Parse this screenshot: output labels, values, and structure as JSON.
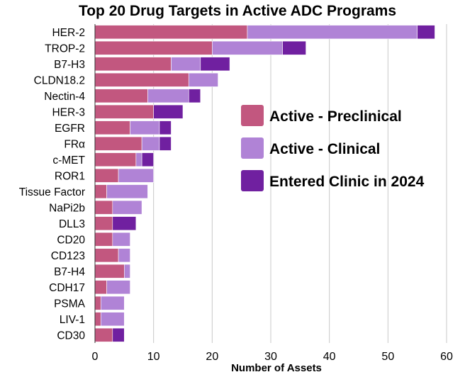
{
  "chart_data": {
    "type": "bar",
    "orientation": "horizontal",
    "stacked": true,
    "title": "Top 20 Drug Targets in Active ADC Programs",
    "xlabel": "Number of Assets",
    "ylabel": "",
    "xlim": [
      0,
      60
    ],
    "xticks": [
      0,
      10,
      20,
      30,
      40,
      50,
      60
    ],
    "grid": "vertical",
    "legend_position": "right",
    "categories": [
      "HER-2",
      "TROP-2",
      "B7-H3",
      "CLDN18.2",
      "Nectin-4",
      "HER-3",
      "EGFR",
      "FRα",
      "c-MET",
      "ROR1",
      "Tissue Factor",
      "NaPi2b",
      "DLL3",
      "CD20",
      "CD123",
      "B7-H4",
      "CDH17",
      "PSMA",
      "LIV-1",
      "CD30"
    ],
    "series": [
      {
        "name": "Active - Preclinical",
        "color": "#c2577f",
        "values": [
          26,
          20,
          13,
          16,
          9,
          10,
          6,
          8,
          7,
          4,
          2,
          3,
          3,
          3,
          4,
          5,
          2,
          1,
          1,
          3
        ]
      },
      {
        "name": "Active - Clinical",
        "color": "#b083d6",
        "values": [
          29,
          12,
          5,
          5,
          7,
          0,
          5,
          3,
          1,
          6,
          7,
          5,
          0,
          3,
          2,
          1,
          4,
          4,
          4,
          0
        ]
      },
      {
        "name": "Entered Clinic in 2024",
        "color": "#7020a0",
        "values": [
          3,
          4,
          5,
          0,
          2,
          5,
          2,
          2,
          2,
          0,
          0,
          0,
          4,
          0,
          0,
          0,
          0,
          0,
          0,
          2
        ]
      }
    ]
  }
}
